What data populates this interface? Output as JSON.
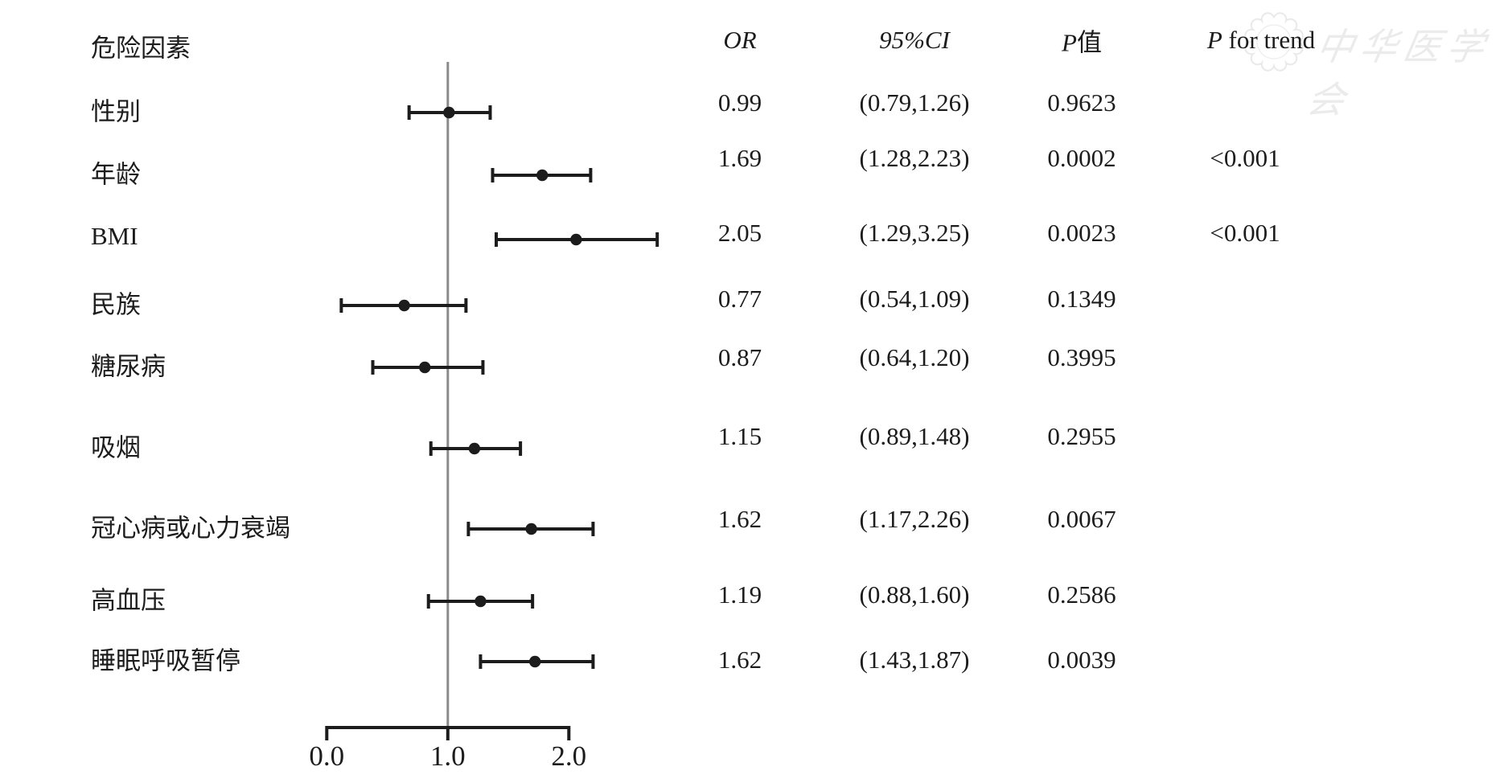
{
  "figure": {
    "watermark": {
      "text": "中华医学会",
      "seal_icon": "scalloped-seal"
    },
    "columns": {
      "factor": "危险因素",
      "or": "OR",
      "ci": "95%CI",
      "p_italic": "P",
      "p_suffix": "值",
      "trend_italic": "P",
      "trend_suffix": " for trend"
    },
    "colors": {
      "ink": "#1c1c1c",
      "reference_line": "#8a8a8a",
      "watermark": "#cfcfcf"
    }
  },
  "chart_data": {
    "type": "scatter",
    "subtype": "forest-plot",
    "title": "",
    "xlabel": "",
    "ylabel": "",
    "legend": "none",
    "grid": false,
    "x_tick_values": [
      0.0,
      1.0,
      2.0
    ],
    "x_tick_labels": [
      "0.0",
      "1.0",
      "2.0"
    ],
    "xlim": [
      0,
      2.75
    ],
    "reference_line_x": 1.0,
    "rows": [
      {
        "label": "性别",
        "or": "0.99",
        "ci": "(0.79,1.26)",
        "p": "0.9623",
        "p_trend": "",
        "plot": [
          0.68,
          1.01,
          1.35
        ]
      },
      {
        "label": "年龄",
        "or": "1.69",
        "ci": "(1.28,2.23)",
        "p": "0.0002",
        "p_trend": "<0.001",
        "plot": [
          1.37,
          1.78,
          2.18
        ]
      },
      {
        "label": "BMI",
        "or": "2.05",
        "ci": "(1.29,3.25)",
        "p": "0.0023",
        "p_trend": "<0.001",
        "plot": [
          1.4,
          2.06,
          2.73
        ]
      },
      {
        "label": "民族",
        "or": "0.77",
        "ci": "(0.54,1.09)",
        "p": "0.1349",
        "p_trend": "",
        "plot": [
          0.12,
          0.64,
          1.15
        ]
      },
      {
        "label": "糖尿病",
        "or": "0.87",
        "ci": "(0.64,1.20)",
        "p": "0.3995",
        "p_trend": "",
        "plot": [
          0.38,
          0.81,
          1.29
        ]
      },
      {
        "label": "吸烟",
        "or": "1.15",
        "ci": "(0.89,1.48)",
        "p": "0.2955",
        "p_trend": "",
        "plot": [
          0.86,
          1.22,
          1.6
        ]
      },
      {
        "label": "冠心病或心力衰竭",
        "or": "1.62",
        "ci": "(1.17,2.26)",
        "p": "0.0067",
        "p_trend": "",
        "plot": [
          1.17,
          1.69,
          2.2
        ]
      },
      {
        "label": "高血压",
        "or": "1.19",
        "ci": "(0.88,1.60)",
        "p": "0.2586",
        "p_trend": "",
        "plot": [
          0.84,
          1.27,
          1.7
        ]
      },
      {
        "label": "睡眠呼吸暂停",
        "or": "1.62",
        "ci": "(1.43,1.87)",
        "p": "0.0039",
        "p_trend": "",
        "plot": [
          1.27,
          1.72,
          2.2
        ]
      }
    ]
  }
}
